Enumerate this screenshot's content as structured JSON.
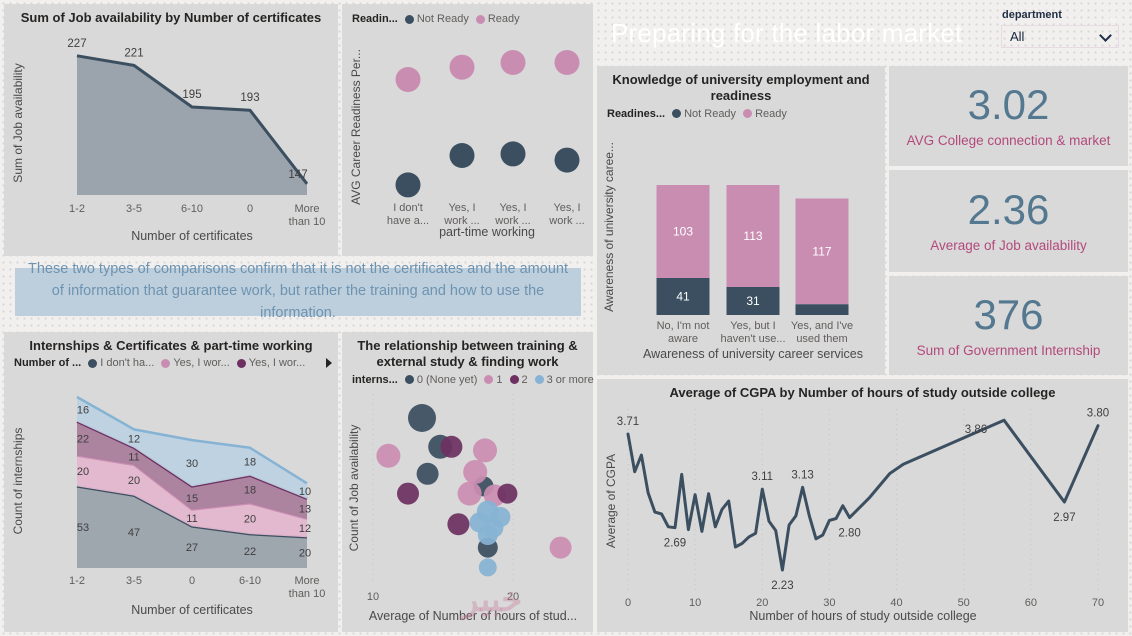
{
  "colors": {
    "dark": "#3b4f60",
    "pink": "#ca8db2",
    "purple": "#6d3061",
    "blue": "#86b3d4",
    "darkFill": "#9ba3ac",
    "pinkFill": "#e3b7ce",
    "purpleFill": "#aa7f9d",
    "blueFill": "#bdd2e2",
    "headerBg": "#9c6083",
    "cardBg": "#d9d9d9",
    "canvasBg": "#f1f0ef",
    "titleText": "#252423",
    "axisText": "#605e5c",
    "axisTitle": "#4a4a4a",
    "dataLabel": "#3f3f3f",
    "grid": "#c3c3c3",
    "kpiValue": "#54788f",
    "kpiLabel": "#b3497c",
    "noteBg": "#bdcfdd",
    "noteText": "#6e93b0",
    "white": "#ffffff"
  },
  "header": {
    "title": "Preparing for the labor market"
  },
  "slicer": {
    "label": "department",
    "value": "All"
  },
  "kpis": [
    {
      "value": "3.02",
      "label": "AVG College connection & market"
    },
    {
      "value": "2.36",
      "label": "Average of Job availability"
    },
    {
      "value": "376",
      "label": "Sum of Government Internship"
    }
  ],
  "note": {
    "text": "These two types of comparisons confirm that it is not the certificates and the amount of information that guarantee work, but rather the training and how to use the information."
  },
  "watermark": "خبير",
  "chart_data": [
    {
      "id": "job-availability-by-certificates",
      "type": "area",
      "title": "Sum of Job availability by Number of certificates",
      "categories": [
        "1-2",
        "3-5",
        "6-10",
        "0",
        "More|than 10"
      ],
      "values": [
        227,
        221,
        195,
        193,
        147
      ],
      "xlabel": "Number of certificates",
      "ylabel": "Sum of Job availability",
      "ylim": [
        140,
        230
      ],
      "grid": false
    },
    {
      "id": "career-readiness-by-parttime",
      "type": "scatter",
      "legend_title": "Readin...",
      "categories": [
        "I don't|have a...",
        "Yes, I|work ...",
        "Yes, I|work ...",
        "Yes, I|work ..."
      ],
      "series": [
        {
          "name": "Not Ready",
          "color": "dark",
          "y_frac": [
            0.89,
            0.7,
            0.69,
            0.73
          ]
        },
        {
          "name": "Ready",
          "color": "pink",
          "y_frac": [
            0.21,
            0.13,
            0.1,
            0.1
          ]
        }
      ],
      "xlabel": "part-time working",
      "ylabel": "AVG Career Readiness Per..."
    },
    {
      "id": "knowledge-awareness",
      "type": "stacked-bar",
      "title": "Knowledge of university employment and readiness",
      "legend_title": "Readines...",
      "categories": [
        "No, I'm not|aware",
        "Yes, but I|haven't use...",
        "Yes, and I've|used them"
      ],
      "series": [
        {
          "name": "Not Ready",
          "color": "dark",
          "values": [
            41,
            31,
            12
          ],
          "labels": [
            "41",
            "31",
            ""
          ]
        },
        {
          "name": "Ready",
          "color": "pink",
          "values": [
            103,
            113,
            117
          ],
          "labels": [
            "103",
            "113",
            "117"
          ]
        }
      ],
      "xlabel": "Awareness of university career services",
      "ylabel": "Awareness of university caree...",
      "ylim": [
        0,
        144
      ]
    },
    {
      "id": "internships-certificates-parttime",
      "type": "stacked-area",
      "title": "Internships & Certificates & part-time working",
      "legend_title": "Number of ...",
      "legend_overflow": true,
      "categories": [
        "1-2",
        "3-5",
        "0",
        "6-10",
        "More|than 10"
      ],
      "series": [
        {
          "name": "I don't ha...",
          "color": "dark",
          "values": [
            53,
            47,
            27,
            22,
            20
          ]
        },
        {
          "name": "Yes, I wor...",
          "color": "pink",
          "values": [
            20,
            20,
            11,
            20,
            12
          ]
        },
        {
          "name": "Yes, I wor...",
          "color": "purple",
          "values": [
            22,
            11,
            15,
            18,
            13
          ]
        },
        {
          "name": "",
          "color": "blue",
          "values": [
            16,
            12,
            30,
            18,
            10
          ]
        }
      ],
      "xlabel": "Number of certificates",
      "ylabel": "Count of internships",
      "ylim": [
        0,
        111
      ]
    },
    {
      "id": "training-study-work",
      "type": "bubble",
      "title": "The relationship between training & external study & finding work",
      "legend_title": "interns...",
      "legend": [
        {
          "label": "0 (None yet)",
          "color": "dark"
        },
        {
          "label": "1",
          "color": "pink"
        },
        {
          "label": "2",
          "color": "purple"
        },
        {
          "label": "3 or more",
          "color": "blue"
        }
      ],
      "xticks": [
        10,
        20
      ],
      "xlabel": "Average of Number of hours of stud...",
      "ylabel": "Count of Job availability",
      "points": [
        [
          13.5,
          0.1,
          14,
          "dark"
        ],
        [
          14.8,
          0.26,
          12,
          "dark"
        ],
        [
          13.9,
          0.41,
          11,
          "dark"
        ],
        [
          17.9,
          0.48,
          10,
          "dark"
        ],
        [
          18.2,
          0.82,
          10,
          "dark"
        ],
        [
          11.1,
          0.31,
          12,
          "pink"
        ],
        [
          18.0,
          0.28,
          12,
          "pink"
        ],
        [
          17.3,
          0.4,
          12,
          "pink"
        ],
        [
          16.9,
          0.52,
          12,
          "pink"
        ],
        [
          18.7,
          0.53,
          11,
          "pink"
        ],
        [
          23.4,
          0.82,
          11,
          "pink"
        ],
        [
          15.6,
          0.26,
          11,
          "purple"
        ],
        [
          12.5,
          0.52,
          11,
          "purple"
        ],
        [
          19.6,
          0.52,
          10,
          "purple"
        ],
        [
          16.1,
          0.69,
          11,
          "purple"
        ],
        [
          18.2,
          0.62,
          11,
          "blue"
        ],
        [
          19.1,
          0.65,
          10,
          "blue"
        ],
        [
          17.6,
          0.68,
          10,
          "blue"
        ],
        [
          18.6,
          0.71,
          10,
          "blue"
        ],
        [
          18.2,
          0.75,
          10,
          "blue"
        ],
        [
          18.2,
          0.93,
          9,
          "blue"
        ]
      ]
    },
    {
      "id": "cgpa-by-study-hours",
      "type": "line",
      "title": "Average of CGPA by Number of hours of study outside college",
      "xticks": [
        0,
        10,
        20,
        30,
        40,
        50,
        60,
        70
      ],
      "xlabel": "Number of hours of study outside college",
      "ylabel": "Average of CGPA",
      "points": [
        [
          0,
          3.71
        ],
        [
          1,
          3.3
        ],
        [
          2,
          3.48
        ],
        [
          3,
          3.07
        ],
        [
          4,
          2.86
        ],
        [
          5,
          2.84
        ],
        [
          6,
          2.7
        ],
        [
          7,
          2.69
        ],
        [
          8,
          3.27
        ],
        [
          9,
          2.67
        ],
        [
          10,
          3.05
        ],
        [
          11,
          2.65
        ],
        [
          12,
          3.06
        ],
        [
          13,
          2.7
        ],
        [
          14,
          2.89
        ],
        [
          15,
          2.98
        ],
        [
          16,
          2.48
        ],
        [
          17,
          2.52
        ],
        [
          18,
          2.59
        ],
        [
          19,
          2.63
        ],
        [
          20,
          3.11
        ],
        [
          21,
          2.76
        ],
        [
          22,
          2.66
        ],
        [
          23,
          2.23
        ],
        [
          24,
          2.72
        ],
        [
          25,
          2.82
        ],
        [
          26,
          3.13
        ],
        [
          27,
          2.82
        ],
        [
          28,
          2.57
        ],
        [
          29,
          2.61
        ],
        [
          30,
          2.77
        ],
        [
          31,
          2.79
        ],
        [
          32,
          2.93
        ],
        [
          33,
          2.8
        ],
        [
          36,
          3.02
        ],
        [
          39,
          3.28
        ],
        [
          41,
          3.38
        ],
        [
          56,
          3.86
        ],
        [
          65,
          2.97
        ],
        [
          70,
          3.8
        ]
      ],
      "labels": [
        {
          "x": 0,
          "y": 3.71,
          "text": "3.71",
          "pos": "above"
        },
        {
          "x": 7,
          "y": 2.69,
          "text": "2.69",
          "pos": "below"
        },
        {
          "x": 20,
          "y": 3.11,
          "text": "3.11",
          "pos": "above"
        },
        {
          "x": 23,
          "y": 2.23,
          "text": "2.23",
          "pos": "below"
        },
        {
          "x": 26,
          "y": 3.13,
          "text": "3.13",
          "pos": "above"
        },
        {
          "x": 33,
          "y": 2.8,
          "text": "2.80",
          "pos": "below"
        },
        {
          "x": 56,
          "y": 3.86,
          "text": "3.86",
          "pos": "left"
        },
        {
          "x": 65,
          "y": 2.97,
          "text": "2.97",
          "pos": "below"
        },
        {
          "x": 70,
          "y": 3.8,
          "text": "3.80",
          "pos": "above"
        }
      ]
    }
  ]
}
